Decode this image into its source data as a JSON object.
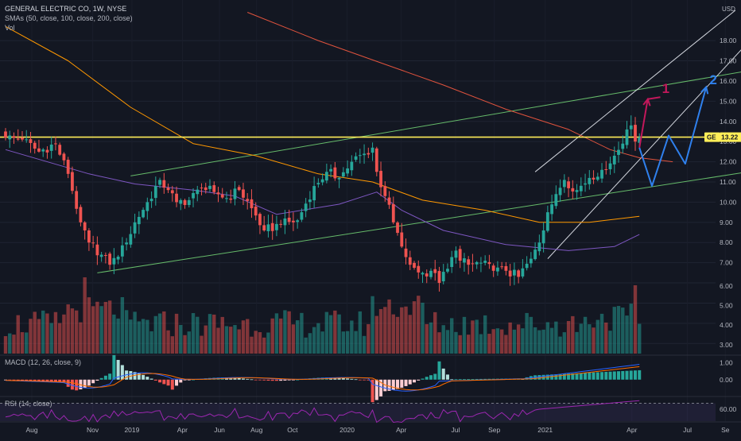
{
  "header": {
    "title": "GENERAL ELECTRIC CO, 1W, NYSE",
    "sma_label": "SMAs (50, close, 100, close, 200, close)",
    "vol_label": "Vol",
    "currency": "USD"
  },
  "price_tag": {
    "symbol": "GE",
    "value": "13.22"
  },
  "macd_label": "MACD (12, 26, close, 9)",
  "rsi_label": "RSI (14, close)",
  "annotations": [
    "1",
    "2"
  ],
  "colors": {
    "background": "#131722",
    "up": "#26a69a",
    "down": "#ef5350",
    "sma50": "#7e57c2",
    "sma100": "#ff9800",
    "sma200": "#e0533d",
    "horizontal_level": "#ffee58",
    "green_channel": "#66bb6a",
    "white_channel": "#d1d4dc",
    "path1": "#c2185b",
    "path2": "#2f80ed",
    "macd_line": "#2962ff",
    "signal_line": "#ff6d00",
    "rsi_line": "#9c27b0"
  },
  "chart_data": {
    "type": "candlestick",
    "interval": "1W",
    "x_tick_labels": [
      "Aug",
      "Nov",
      "2019",
      "Apr",
      "Jun",
      "Aug",
      "Oct",
      "2020",
      "Apr",
      "Jul",
      "Sep",
      "2021",
      "Apr",
      "Jul",
      "Se"
    ],
    "y_tick_labels": [
      "18.00",
      "17.00",
      "16.00",
      "15.00",
      "14.00",
      "13.00",
      "12.00",
      "11.00",
      "10.00",
      "9.00",
      "8.00",
      "7.00",
      "6.00",
      "5.00",
      "4.00",
      "3.00"
    ],
    "ylim": [
      2.5,
      19.5
    ],
    "horizontal_level": 13.22,
    "anchors": [
      {
        "w": 0,
        "c": 13.2
      },
      {
        "w": 4,
        "c": 13.1
      },
      {
        "w": 8,
        "c": 12.5
      },
      {
        "w": 12,
        "c": 12.9
      },
      {
        "w": 15,
        "c": 11.4
      },
      {
        "w": 18,
        "c": 9.0
      },
      {
        "w": 20,
        "c": 8.0
      },
      {
        "w": 23,
        "c": 7.4
      },
      {
        "w": 25,
        "c": 6.9
      },
      {
        "w": 27,
        "c": 7.3
      },
      {
        "w": 29,
        "c": 8.0
      },
      {
        "w": 31,
        "c": 9.0
      },
      {
        "w": 34,
        "c": 10.0
      },
      {
        "w": 37,
        "c": 11.1
      },
      {
        "w": 39,
        "c": 10.6
      },
      {
        "w": 41,
        "c": 10.0
      },
      {
        "w": 44,
        "c": 10.1
      },
      {
        "w": 47,
        "c": 10.7
      },
      {
        "w": 50,
        "c": 10.5
      },
      {
        "w": 53,
        "c": 10.2
      },
      {
        "w": 56,
        "c": 10.6
      },
      {
        "w": 59,
        "c": 9.7
      },
      {
        "w": 62,
        "c": 8.6
      },
      {
        "w": 66,
        "c": 8.9
      },
      {
        "w": 70,
        "c": 9.1
      },
      {
        "w": 74,
        "c": 10.8
      },
      {
        "w": 77,
        "c": 11.5
      },
      {
        "w": 80,
        "c": 11.2
      },
      {
        "w": 83,
        "c": 12.0
      },
      {
        "w": 86,
        "c": 12.4
      },
      {
        "w": 88,
        "c": 12.7
      },
      {
        "w": 89,
        "c": 11.5
      },
      {
        "w": 91,
        "c": 10.3
      },
      {
        "w": 93,
        "c": 9.0
      },
      {
        "w": 95,
        "c": 7.8
      },
      {
        "w": 97,
        "c": 6.9
      },
      {
        "w": 100,
        "c": 6.5
      },
      {
        "w": 102,
        "c": 6.6
      },
      {
        "w": 104,
        "c": 6.0
      },
      {
        "w": 106,
        "c": 6.7
      },
      {
        "w": 108,
        "c": 7.6
      },
      {
        "w": 109,
        "c": 7.1
      },
      {
        "w": 111,
        "c": 6.9
      },
      {
        "w": 114,
        "c": 7.0
      },
      {
        "w": 117,
        "c": 6.6
      },
      {
        "w": 120,
        "c": 6.6
      },
      {
        "w": 123,
        "c": 6.3
      },
      {
        "w": 126,
        "c": 7.2
      },
      {
        "w": 128,
        "c": 8.0
      },
      {
        "w": 130,
        "c": 9.5
      },
      {
        "w": 132,
        "c": 10.4
      },
      {
        "w": 134,
        "c": 11.1
      },
      {
        "w": 137,
        "c": 10.6
      },
      {
        "w": 140,
        "c": 11.2
      },
      {
        "w": 143,
        "c": 11.6
      },
      {
        "w": 146,
        "c": 12.3
      },
      {
        "w": 148,
        "c": 12.9
      },
      {
        "w": 149,
        "c": 13.6
      },
      {
        "w": 150,
        "c": 13.8
      },
      {
        "w": 151,
        "c": 13.0
      },
      {
        "w": 152,
        "c": 13.22
      }
    ],
    "sma50": [
      [
        0,
        12.6
      ],
      [
        20,
        11.4
      ],
      [
        31,
        10.9
      ],
      [
        45,
        10.6
      ],
      [
        55,
        10.3
      ],
      [
        65,
        9.4
      ],
      [
        80,
        9.9
      ],
      [
        89,
        10.5
      ],
      [
        95,
        9.6
      ],
      [
        105,
        8.6
      ],
      [
        120,
        7.9
      ],
      [
        135,
        7.6
      ],
      [
        146,
        7.8
      ],
      [
        152,
        8.4
      ]
    ],
    "sma100": [
      [
        0,
        18.7
      ],
      [
        15,
        17.0
      ],
      [
        30,
        14.7
      ],
      [
        45,
        12.9
      ],
      [
        60,
        12.3
      ],
      [
        75,
        11.4
      ],
      [
        88,
        11.0
      ],
      [
        100,
        10.1
      ],
      [
        115,
        9.6
      ],
      [
        128,
        9.0
      ],
      [
        140,
        9.0
      ],
      [
        152,
        9.3
      ]
    ],
    "sma200": [
      [
        58,
        19.4
      ],
      [
        75,
        18.0
      ],
      [
        90,
        16.9
      ],
      [
        105,
        15.8
      ],
      [
        120,
        14.6
      ],
      [
        135,
        13.6
      ],
      [
        145,
        12.6
      ],
      [
        152,
        12.2
      ],
      [
        160,
        12.0
      ]
    ],
    "green_channel_upper": [
      [
        30,
        11.3
      ],
      [
        178,
        16.5
      ]
    ],
    "green_channel_lower": [
      [
        22,
        6.5
      ],
      [
        178,
        11.5
      ]
    ],
    "white_channel_upper": [
      [
        127,
        11.5
      ],
      [
        175,
        19.5
      ]
    ],
    "white_channel_lower": [
      [
        130,
        7.2
      ],
      [
        178,
        17.9
      ]
    ],
    "path_1": [
      [
        152,
        12.7
      ],
      [
        154,
        15.1
      ],
      [
        157,
        15.2
      ]
    ],
    "path_2": [
      [
        152,
        12.7
      ],
      [
        155,
        10.8
      ],
      [
        159,
        13.3
      ],
      [
        163,
        11.9
      ],
      [
        168,
        15.7
      ]
    ],
    "volume": {
      "y_tick_labels": [
        "6.00",
        "5.00",
        "4.00",
        "3.00"
      ],
      "ylim": [
        0,
        6.2
      ]
    },
    "macd": {
      "y_tick_labels": [
        "1.00",
        "0.00"
      ],
      "ylim": [
        -0.9,
        1.3
      ]
    },
    "rsi": {
      "y_tick_labels": [
        "60.00"
      ],
      "ylim": [
        40,
        80
      ]
    }
  }
}
